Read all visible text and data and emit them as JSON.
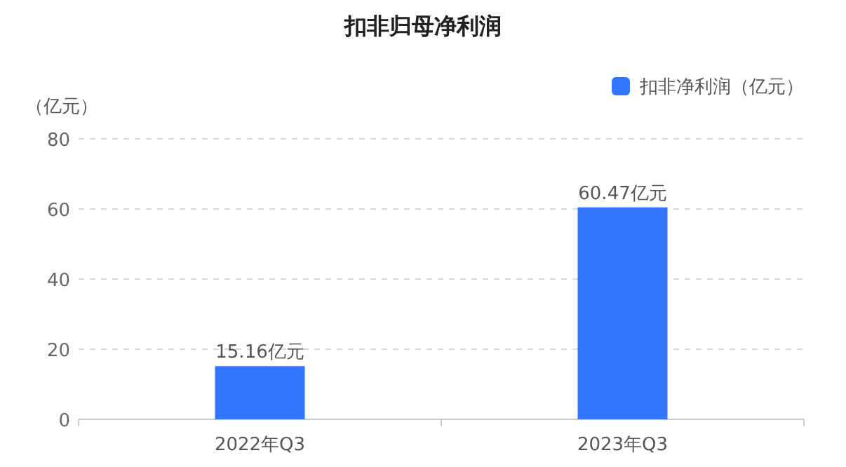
{
  "chart_data": {
    "type": "bar",
    "title": "扣非归母净利润",
    "ylabel": "（亿元）",
    "categories": [
      "2022年Q3",
      "2023年Q3"
    ],
    "series": [
      {
        "name": "扣非净利润（亿元）",
        "color": "#3377ff",
        "values": [
          15.16,
          60.47
        ],
        "value_labels": [
          "15.16亿元",
          "60.47亿元"
        ]
      }
    ],
    "ylim": [
      0,
      80
    ],
    "yticks": [
      0,
      20,
      40,
      60,
      80
    ],
    "grid": "y",
    "legend": "top right"
  }
}
